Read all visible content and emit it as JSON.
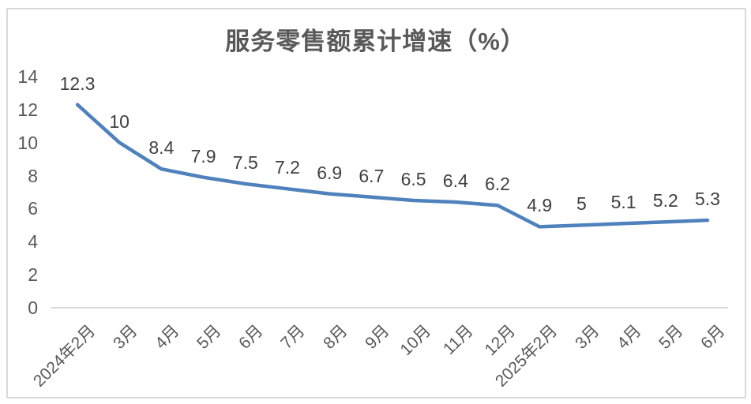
{
  "chart_data": {
    "type": "line",
    "title": "服务零售额累计增速（%）",
    "categories": [
      "2024年2月",
      "3月",
      "4月",
      "5月",
      "6月",
      "7月",
      "8月",
      "9月",
      "10月",
      "11月",
      "12月",
      "2025年2月",
      "3月",
      "4月",
      "5月",
      "6月"
    ],
    "values": [
      12.3,
      10,
      8.4,
      7.9,
      7.5,
      7.2,
      6.9,
      6.7,
      6.5,
      6.4,
      6.2,
      4.9,
      5,
      5.1,
      5.2,
      5.3
    ],
    "value_labels": [
      "12.3",
      "10",
      "8.4",
      "7.9",
      "7.5",
      "7.2",
      "6.9",
      "6.7",
      "6.5",
      "6.4",
      "6.2",
      "4.9",
      "5",
      "5.1",
      "5.2",
      "5.3"
    ],
    "y_ticks": [
      0,
      2,
      4,
      6,
      8,
      10,
      12,
      14
    ],
    "ylim": [
      0,
      14
    ],
    "xlabel": "",
    "ylabel": "",
    "grid": false,
    "legend": "none",
    "colors": {
      "line": "#4F81BD",
      "axis_line": "#d9d9d9",
      "frame_border": "#d9d9d9",
      "title_text": "#595959",
      "tick_text": "#595959",
      "data_label_text": "#404040",
      "background": "#ffffff"
    }
  }
}
